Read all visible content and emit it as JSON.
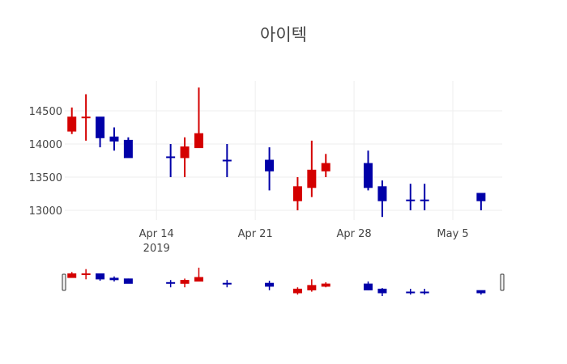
{
  "chart_data": {
    "type": "candlestick",
    "title": "아이텍",
    "xlabel": "",
    "ylabel": "",
    "increasing_color": "#d40000",
    "decreasing_color": "#0000a8",
    "grid": true,
    "x_range": [
      "2019-04-07T12:00",
      "2019-05-08T12:00"
    ],
    "ylim": [
      12900,
      14900
    ],
    "y_ticks": [
      13000,
      13500,
      14000,
      14500
    ],
    "x_ticks": [
      {
        "date": "2019-04-14",
        "label": "Apr 14",
        "sub": "2019"
      },
      {
        "date": "2019-04-21",
        "label": "Apr 21",
        "sub": ""
      },
      {
        "date": "2019-04-28",
        "label": "Apr 28",
        "sub": ""
      },
      {
        "date": "2019-05-05",
        "label": "May 5",
        "sub": ""
      }
    ],
    "rangeslider": true,
    "candles": [
      {
        "date": "2019-04-08",
        "open": 14200,
        "high": 14550,
        "low": 14150,
        "close": 14400
      },
      {
        "date": "2019-04-09",
        "open": 14400,
        "high": 14750,
        "low": 14050,
        "close": 14400,
        "dir": "up"
      },
      {
        "date": "2019-04-10",
        "open": 14400,
        "high": 14400,
        "low": 13950,
        "close": 14100
      },
      {
        "date": "2019-04-11",
        "open": 14100,
        "high": 14250,
        "low": 13900,
        "close": 14050
      },
      {
        "date": "2019-04-12",
        "open": 14050,
        "high": 14100,
        "low": 13800,
        "close": 13800
      },
      {
        "date": "2019-04-15",
        "open": 13800,
        "high": 14000,
        "low": 13500,
        "close": 13800,
        "dir": "down"
      },
      {
        "date": "2019-04-16",
        "open": 13800,
        "high": 14100,
        "low": 13500,
        "close": 13950
      },
      {
        "date": "2019-04-17",
        "open": 13950,
        "high": 14850,
        "low": 13950,
        "close": 14150
      },
      {
        "date": "2019-04-19",
        "open": 13750,
        "high": 14000,
        "low": 13500,
        "close": 13750,
        "dir": "down"
      },
      {
        "date": "2019-04-22",
        "open": 13750,
        "high": 13950,
        "low": 13300,
        "close": 13600
      },
      {
        "date": "2019-04-24",
        "open": 13150,
        "high": 13500,
        "low": 13000,
        "close": 13350
      },
      {
        "date": "2019-04-25",
        "open": 13350,
        "high": 14050,
        "low": 13200,
        "close": 13600
      },
      {
        "date": "2019-04-26",
        "open": 13600,
        "high": 13850,
        "low": 13500,
        "close": 13700
      },
      {
        "date": "2019-04-29",
        "open": 13700,
        "high": 13900,
        "low": 13300,
        "close": 13350
      },
      {
        "date": "2019-04-30",
        "open": 13350,
        "high": 13450,
        "low": 12900,
        "close": 13150
      },
      {
        "date": "2019-05-02",
        "open": 13150,
        "high": 13400,
        "low": 13000,
        "close": 13150,
        "dir": "down"
      },
      {
        "date": "2019-05-03",
        "open": 13150,
        "high": 13400,
        "low": 13000,
        "close": 13150,
        "dir": "down"
      },
      {
        "date": "2019-05-07",
        "open": 13250,
        "high": 13250,
        "low": 13000,
        "close": 13150
      }
    ]
  }
}
